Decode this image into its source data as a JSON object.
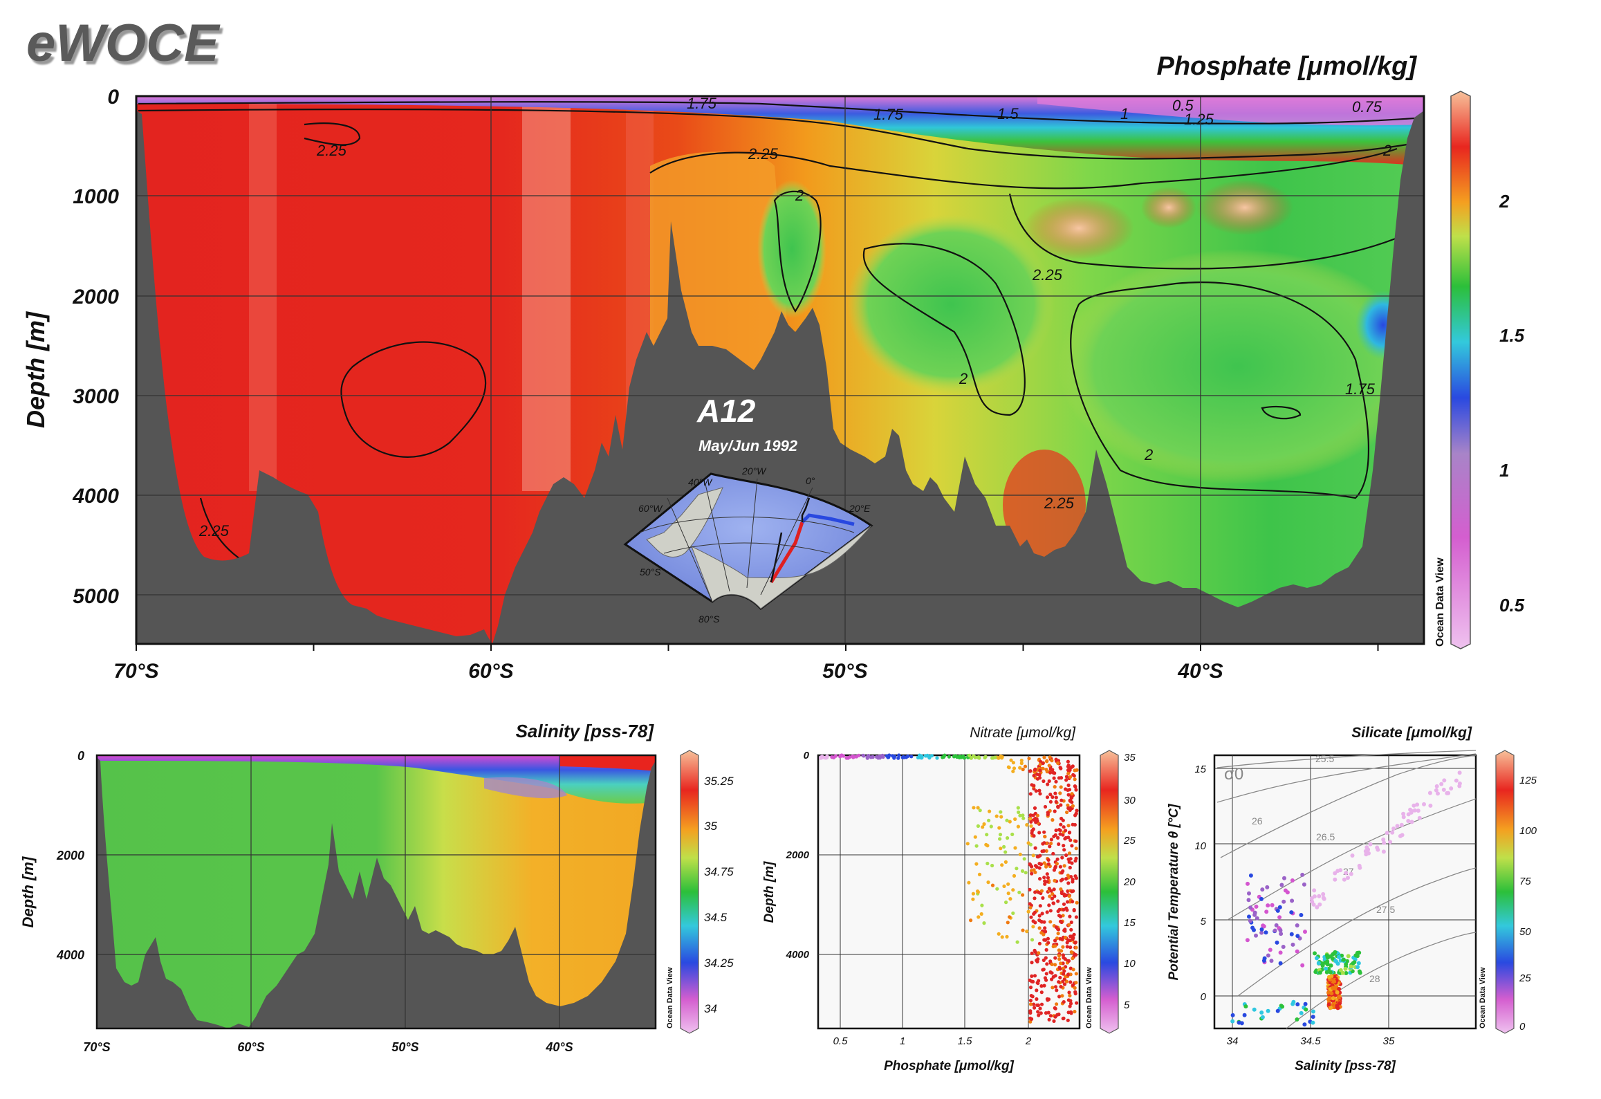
{
  "brand": "eWOCE",
  "watermark": "Ocean Data View",
  "colors": {
    "land": "#555555",
    "scale": [
      "#e8b2ea",
      "#d455cf",
      "#9a62c8",
      "#2848e0",
      "#2fc7e0",
      "#2cc23a",
      "#a9e04a",
      "#f4ae20",
      "#f07a10",
      "#e02424",
      "#f7c19a"
    ]
  },
  "main": {
    "title": "Phosphate [μmol/kg]",
    "ylabel": "Depth [m]",
    "yticks": [
      "0",
      "1000",
      "2000",
      "3000",
      "4000",
      "5000"
    ],
    "xticks": [
      "70°S",
      "60°S",
      "50°S",
      "40°S"
    ],
    "colorbar_ticks": [
      "2",
      "1.5",
      "1",
      "0.5"
    ],
    "contour_labels": [
      "1.75",
      "1.75",
      "1.5",
      "1",
      "0.5",
      "0.75",
      "1.25",
      "2",
      "2.25",
      "2",
      "2.25",
      "2",
      "1.75",
      "2",
      "2.25",
      "2.25",
      "2.25"
    ],
    "inset": {
      "section": "A12",
      "date": "May/Jun 1992",
      "lon_labels": [
        "60°W",
        "40°W",
        "20°W",
        "0°",
        "20°E"
      ],
      "lat_labels": [
        "50°S",
        "80°S"
      ]
    }
  },
  "salinity": {
    "title": "Salinity [pss-78]",
    "ylabel": "Depth [m]",
    "yticks": [
      "0",
      "2000",
      "4000"
    ],
    "xticks": [
      "70°S",
      "60°S",
      "50°S",
      "40°S"
    ],
    "colorbar_ticks": [
      "35.25",
      "35",
      "34.75",
      "34.5",
      "34.25",
      "34"
    ]
  },
  "nitrate": {
    "title": "Nitrate [μmol/kg]",
    "ylabel": "Depth [m]",
    "xlabel": "Phosphate [μmol/kg]",
    "yticks": [
      "0",
      "2000",
      "4000"
    ],
    "xticks": [
      "0.5",
      "1",
      "1.5",
      "2"
    ],
    "colorbar_ticks": [
      "35",
      "30",
      "25",
      "20",
      "15",
      "10",
      "5"
    ]
  },
  "silicate": {
    "title": "Silicate [μmol/kg]",
    "ylabel": "Potential Temperature θ [°C]",
    "xlabel": "Salinity [pss-78]",
    "yticks": [
      "15",
      "10",
      "5",
      "0"
    ],
    "xticks": [
      "34",
      "34.5",
      "35"
    ],
    "sigma_label": "σ0",
    "isopycnal_labels": [
      "25.5",
      "26",
      "26.5",
      "27",
      "27.5",
      "28"
    ],
    "colorbar_ticks": [
      "125",
      "100",
      "75",
      "50",
      "25",
      "0"
    ]
  },
  "chart_data": [
    {
      "type": "heatmap",
      "title": "Phosphate [μmol/kg]",
      "xlabel": "",
      "ylabel": "Depth [m]",
      "x_range": [
        "70°S",
        "35°S"
      ],
      "ylim": [
        5500,
        0
      ],
      "colorbar_range": [
        0.35,
        2.4
      ],
      "contour_levels": [
        0.5,
        0.75,
        1,
        1.25,
        1.5,
        1.75,
        2,
        2.25
      ],
      "inset_map": "A12 May/Jun 1992"
    },
    {
      "type": "heatmap",
      "title": "Salinity [pss-78]",
      "ylabel": "Depth [m]",
      "x_range": [
        "70°S",
        "35°S"
      ],
      "ylim": [
        5500,
        0
      ],
      "colorbar_range": [
        33.9,
        35.4
      ]
    },
    {
      "type": "scatter",
      "title": "Nitrate [μmol/kg]",
      "xlabel": "Phosphate [μmol/kg]",
      "ylabel": "Depth [m]",
      "xlim": [
        0.3,
        2.4
      ],
      "ylim": [
        5500,
        0
      ],
      "colorbar_range": [
        2,
        36
      ],
      "series": [
        {
          "x": [
            0.5,
            1.0,
            1.5,
            2.0,
            2.2,
            2.3,
            2.15,
            2.25
          ],
          "y": [
            30,
            50,
            60,
            200,
            1000,
            2500,
            3500,
            5000
          ],
          "c": [
            3,
            12,
            18,
            28,
            31,
            32,
            32,
            33
          ]
        }
      ]
    },
    {
      "type": "scatter",
      "title": "Silicate [μmol/kg]",
      "xlabel": "Salinity [pss-78]",
      "ylabel": "Potential Temperature θ [°C]",
      "xlim": [
        33.9,
        35.6
      ],
      "ylim": [
        -2,
        16
      ],
      "colorbar_range": [
        0,
        140
      ],
      "series": [
        {
          "x": [
            35.4,
            34.9,
            34.4,
            34.2,
            34.5,
            34.7,
            34.65,
            34.05
          ],
          "y": [
            14.5,
            9,
            7,
            3,
            2.5,
            2,
            0,
            -1
          ],
          "c": [
            2,
            5,
            8,
            30,
            55,
            70,
            120,
            60
          ]
        }
      ]
    }
  ]
}
